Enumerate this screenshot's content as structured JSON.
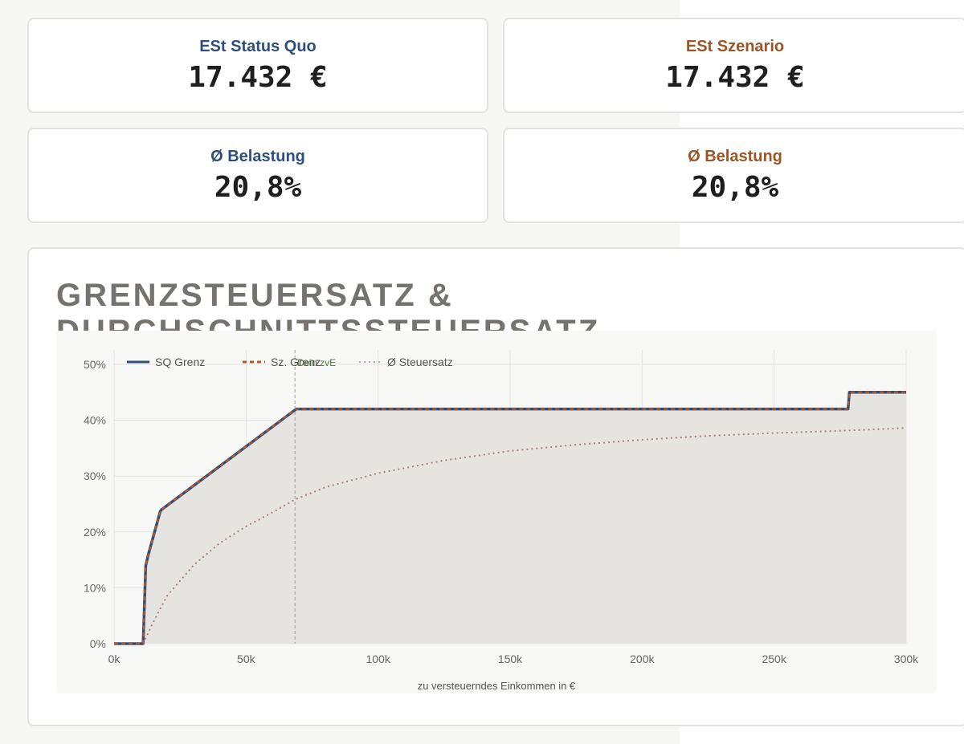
{
  "cards": [
    {
      "label": "ESt Status Quo",
      "value": "17.432 €"
    },
    {
      "label": "ESt Szenario",
      "value": "17.432 €"
    },
    {
      "label": "Ø Belastung",
      "value": "20,8%"
    },
    {
      "label": "Ø Belastung",
      "value": "20,8%"
    }
  ],
  "colors": {
    "sq": "#2e4f7d",
    "sz": "#c0561f",
    "avg": "#a9827c",
    "fill": "#e6e4e1",
    "plot_bg": "#f8f8f7",
    "grid": "#e4e3e0",
    "marker": "#4a7a3a"
  },
  "chart_data": {
    "type": "line",
    "title": "GRENZSTEUERSATZ & DURCHSCHNITTSSTEUERSATZ",
    "xlabel": "zu versteuerndes Einkommen in €",
    "ylabel": "",
    "xlim": [
      0,
      300000
    ],
    "ylim": [
      0,
      0.52
    ],
    "x_ticks": [
      0,
      50000,
      100000,
      150000,
      200000,
      250000,
      300000
    ],
    "x_tick_labels": [
      "0k",
      "50k",
      "100k",
      "150k",
      "200k",
      "250k",
      "300k"
    ],
    "y_ticks": [
      0,
      0.1,
      0.2,
      0.3,
      0.4,
      0.5
    ],
    "y_tick_labels": [
      "0%",
      "10%",
      "20%",
      "30%",
      "40%",
      "50%"
    ],
    "grid": true,
    "legend_position": "top-left",
    "marker": {
      "label": "Dein zvE",
      "x": 68500
    },
    "series": [
      {
        "name": "SQ Grenz",
        "style": "solid",
        "x": [
          0,
          11000,
          12000,
          13000,
          17500,
          18000,
          69000,
          278000,
          278500,
          300000
        ],
        "values": [
          0,
          0,
          0.14,
          0.16,
          0.237,
          0.24,
          0.42,
          0.42,
          0.45,
          0.45
        ]
      },
      {
        "name": "Sz. Grenz",
        "style": "dashed",
        "x": [
          0,
          11000,
          12000,
          13000,
          17500,
          18000,
          69000,
          278000,
          278500,
          300000
        ],
        "values": [
          0,
          0,
          0.14,
          0.16,
          0.237,
          0.24,
          0.42,
          0.42,
          0.45,
          0.45
        ]
      },
      {
        "name": "Ø Steuersatz",
        "style": "dotted",
        "x": [
          11000,
          15000,
          20000,
          30000,
          40000,
          50000,
          60000,
          68500,
          80000,
          100000,
          125000,
          150000,
          175000,
          200000,
          225000,
          250000,
          275000,
          300000
        ],
        "values": [
          0,
          0.04,
          0.085,
          0.14,
          0.18,
          0.21,
          0.235,
          0.258,
          0.28,
          0.305,
          0.328,
          0.345,
          0.356,
          0.365,
          0.372,
          0.377,
          0.381,
          0.386
        ]
      }
    ]
  }
}
